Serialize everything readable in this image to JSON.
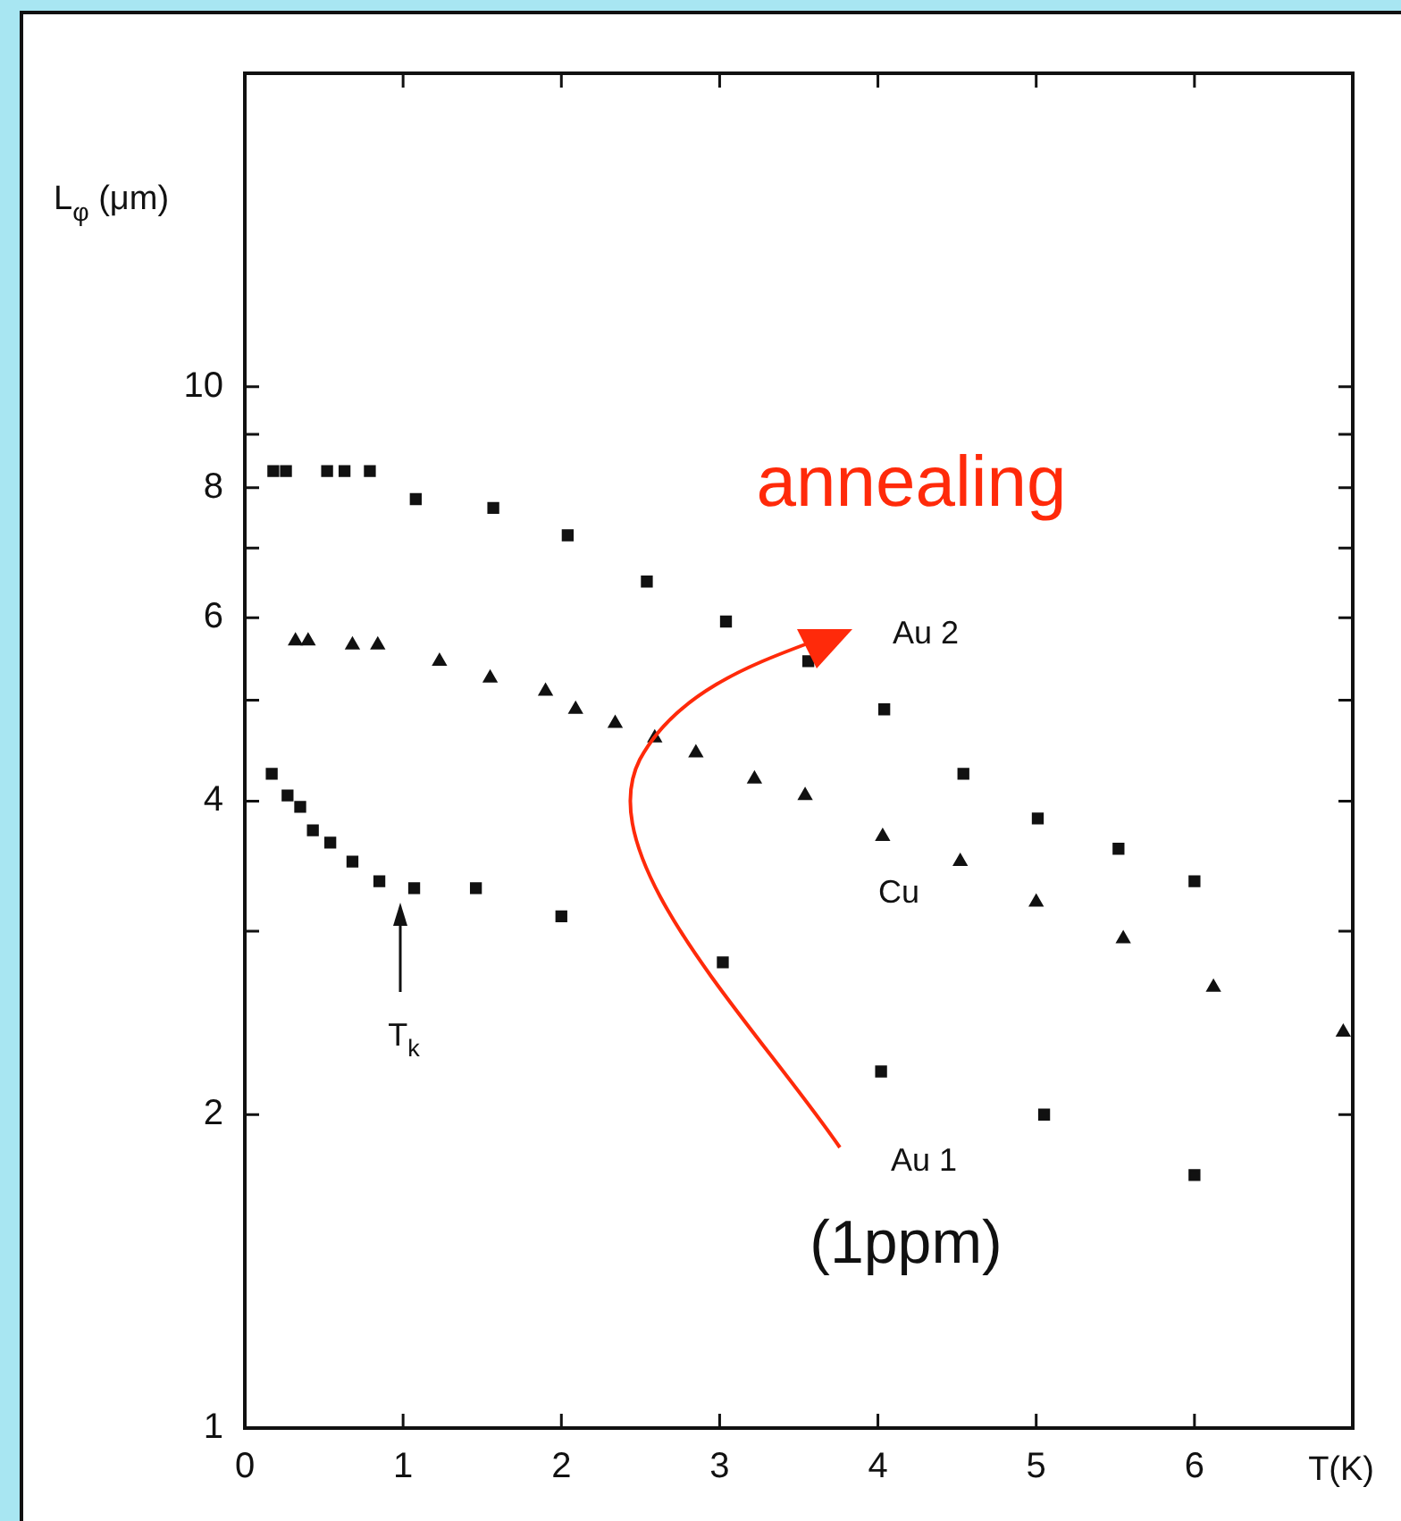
{
  "chart_data": {
    "type": "scatter",
    "xlabel": "T(K)",
    "ylabel": "L$_{φ}$ (μm)",
    "log": "y",
    "grid": false,
    "legend": false,
    "xlim": [
      0,
      7
    ],
    "xticks": [
      0,
      1,
      2,
      3,
      4,
      5,
      6
    ],
    "ylim": [
      1,
      20
    ],
    "yticks": [
      1,
      2,
      {
        "value": 3,
        "label": null
      },
      4,
      {
        "value": 5,
        "label": null
      },
      6,
      {
        "value": 7,
        "label": null
      },
      8,
      {
        "value": 9,
        "label": null
      },
      10
    ],
    "series": [
      {
        "name": "Au 2",
        "color": "#111111",
        "marker": "square",
        "x": [
          0.18,
          0.26,
          0.52,
          0.63,
          0.79,
          1.08,
          1.57,
          2.04,
          2.54,
          3.04,
          3.56,
          4.04,
          4.54,
          5.01,
          5.52,
          6.0
        ],
        "values": [
          8.3,
          8.3,
          8.3,
          8.3,
          8.3,
          7.8,
          7.65,
          7.2,
          6.5,
          5.95,
          5.45,
          4.9,
          4.25,
          3.85,
          3.6,
          3.35
        ]
      },
      {
        "name": "Cu",
        "color": "#111111",
        "marker": "triangle",
        "x": [
          0.32,
          0.4,
          0.68,
          0.84,
          1.23,
          1.55,
          1.9,
          2.09,
          2.34,
          2.59,
          2.85,
          3.22,
          3.54,
          4.03,
          4.52,
          5.0,
          5.55,
          6.12,
          6.94
        ],
        "values": [
          5.7,
          5.7,
          5.65,
          5.65,
          5.45,
          5.25,
          5.1,
          4.9,
          4.75,
          4.6,
          4.45,
          4.2,
          4.05,
          3.7,
          3.5,
          3.2,
          2.95,
          2.65,
          2.4
        ]
      },
      {
        "name": "Au 1",
        "color": "#111111",
        "marker": "square",
        "x": [
          0.17,
          0.27,
          0.35,
          0.43,
          0.54,
          0.68,
          0.85,
          1.07,
          1.46,
          2.0,
          3.02,
          4.02,
          5.05,
          6.0
        ],
        "values": [
          4.25,
          4.05,
          3.95,
          3.75,
          3.65,
          3.5,
          3.35,
          3.3,
          3.3,
          3.1,
          2.8,
          2.2,
          2.0,
          1.75
        ]
      }
    ],
    "annotations": [
      "annealing",
      "(1ppm)",
      "T$_{k}$"
    ]
  }
}
